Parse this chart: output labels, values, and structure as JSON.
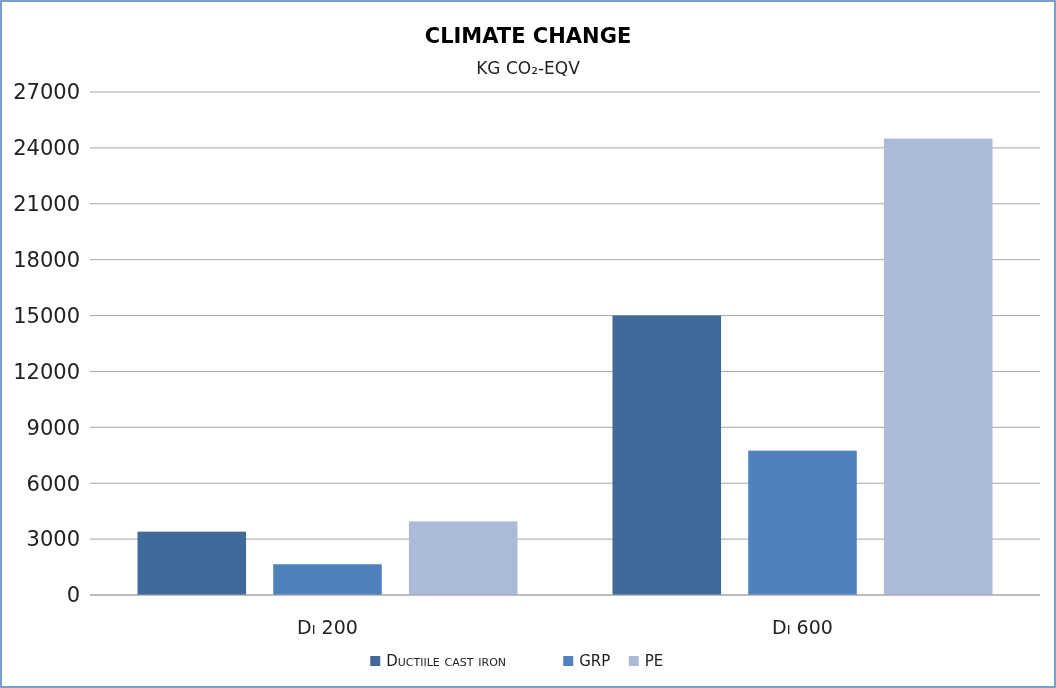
{
  "chart_data": {
    "type": "bar",
    "title": "CLIMATE CHANGE",
    "subtitle": "KG CO₂-EQV",
    "categories": [
      "Di 200",
      "Di 600"
    ],
    "series": [
      {
        "name": "Ductiile cast iron",
        "color": "#3f6a9a",
        "values": [
          3400,
          15000
        ]
      },
      {
        "name": "GRP",
        "color": "#4f81bd",
        "values": [
          1650,
          7750
        ]
      },
      {
        "name": "PE",
        "color": "#abbad8",
        "values": [
          3950,
          24500
        ]
      }
    ],
    "ylim": [
      0,
      27000
    ],
    "yticks": [
      0,
      3000,
      6000,
      9000,
      12000,
      15000,
      18000,
      21000,
      24000,
      27000
    ],
    "grid": "y",
    "legend": "bottom"
  }
}
